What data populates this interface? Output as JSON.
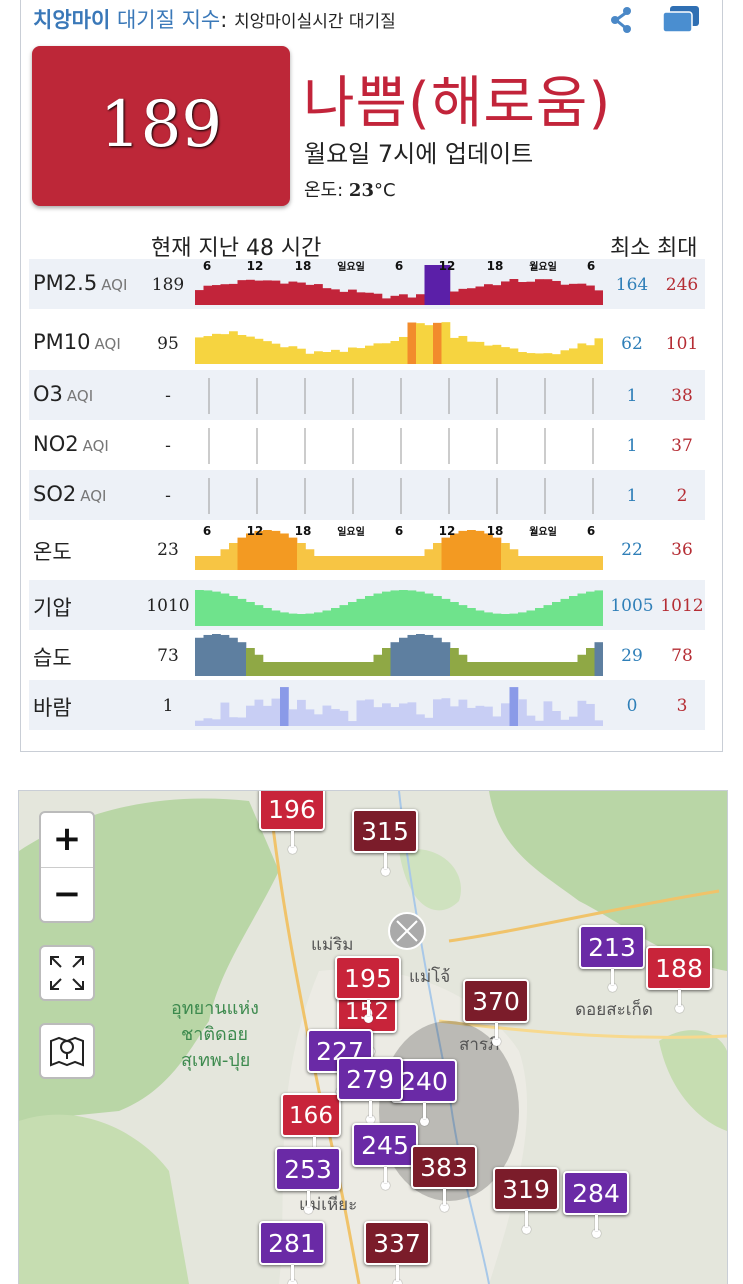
{
  "header": {
    "city": "치앙마이",
    "index_label": "대기질 지수",
    "colon": ":",
    "subtitle": "치앙마이실시간 대기질"
  },
  "aqi": {
    "value": "189",
    "level": "나쁨(해로움)",
    "updated": "월요일 7시에 업데이트",
    "temp_label": "온도:",
    "temp_value": "23",
    "temp_unit": "°C",
    "color": "#bd2738"
  },
  "table": {
    "range_header": "현재 지난 48 시간",
    "min_header": "최소",
    "max_header": "최대",
    "axis_ticks": [
      "6",
      "12",
      "18",
      "일요일",
      "6",
      "12",
      "18",
      "월요일",
      "6"
    ],
    "rows": [
      {
        "key": "pm25",
        "label": "PM2.5",
        "unit": "AQI",
        "current": "189",
        "min": "164",
        "max": "246",
        "chart": "pm25"
      },
      {
        "key": "pm10",
        "label": "PM10",
        "unit": "AQI",
        "current": "95",
        "min": "62",
        "max": "101",
        "chart": "pm10"
      },
      {
        "key": "o3",
        "label": "O3",
        "unit": "AQI",
        "current": "-",
        "min": "1",
        "max": "38",
        "chart": "grid"
      },
      {
        "key": "no2",
        "label": "NO2",
        "unit": "AQI",
        "current": "-",
        "min": "1",
        "max": "37",
        "chart": "grid"
      },
      {
        "key": "so2",
        "label": "SO2",
        "unit": "AQI",
        "current": "-",
        "min": "1",
        "max": "2",
        "chart": "grid"
      },
      {
        "key": "temp",
        "label": "온도",
        "unit": "",
        "current": "23",
        "min": "22",
        "max": "36",
        "chart": "temp"
      },
      {
        "key": "pressure",
        "label": "기압",
        "unit": "",
        "current": "1010",
        "min": "1005",
        "max": "1012",
        "chart": "pressure"
      },
      {
        "key": "humidity",
        "label": "습도",
        "unit": "",
        "current": "73",
        "min": "29",
        "max": "78",
        "chart": "humidity"
      },
      {
        "key": "wind",
        "label": "바람",
        "unit": "",
        "current": "1",
        "min": "0",
        "max": "3",
        "chart": "wind"
      }
    ]
  },
  "map": {
    "zoom_in": "+",
    "zoom_out": "−",
    "labels": [
      "แม่ริม",
      "แม่โจ้",
      "อุทยานแห่ง",
      "ชาติดอย",
      "สุเทพ-ปุย",
      "ดอยสะเก็ด",
      "สารภี",
      "แม่เหียะ"
    ],
    "markers": [
      "196",
      "315",
      "213",
      "188",
      "195",
      "370",
      "227",
      "279",
      "240",
      "245",
      "253",
      "383",
      "319",
      "284",
      "281",
      "337",
      "152",
      "166"
    ]
  }
}
